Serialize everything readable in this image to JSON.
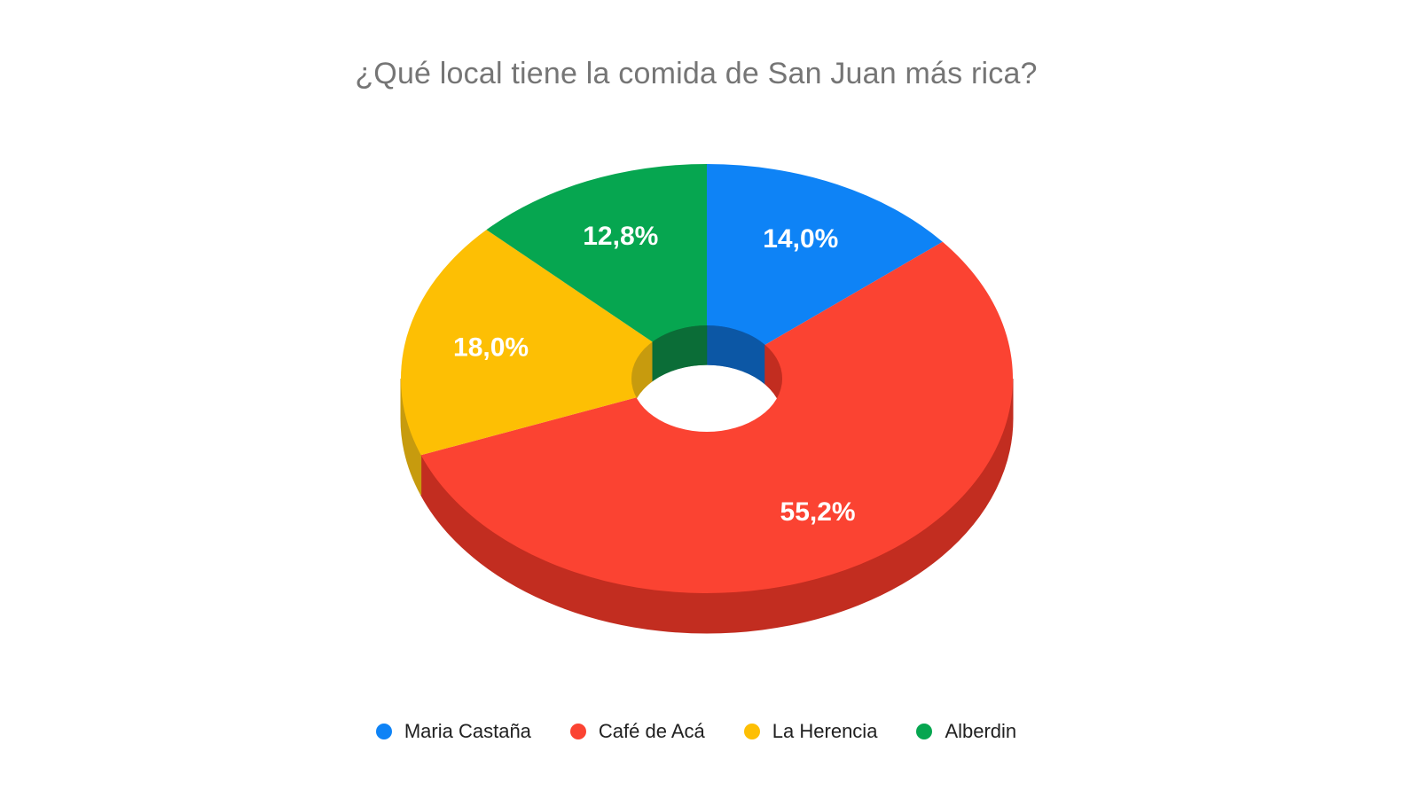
{
  "title": {
    "text": "¿Qué local tiene la comida de San Juan más rica?",
    "color": "#757575"
  },
  "chart_data": {
    "type": "pie",
    "style": "3d-donut",
    "title": "¿Qué local tiene la comida de San Juan más rica?",
    "start_angle_deg": 0,
    "direction": "clockwise",
    "categories": [
      "Maria Castaña",
      "Café de Acá",
      "La Herencia",
      "Alberdin"
    ],
    "values": [
      14.0,
      55.2,
      18.0,
      12.8
    ],
    "value_labels": [
      "14,0%",
      "55,2%",
      "18,0%",
      "12,8%"
    ],
    "colors": [
      "#0e83f6",
      "#fb4332",
      "#fdbf04",
      "#06a650"
    ],
    "side_colors": [
      "#0c57a5",
      "#c22d20",
      "#c79b0e",
      "#0b6d37"
    ],
    "slice_label_color": "#ffffff",
    "hole_color": "#ffffff",
    "background": "#ffffff",
    "legend_position": "bottom",
    "legend_text_color": "#212121"
  }
}
